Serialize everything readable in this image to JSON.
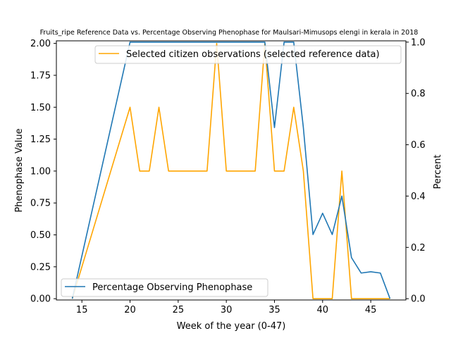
{
  "chart_data": {
    "type": "line",
    "title": "Fruits_ripe Reference Data vs. Percentage Observing Phenophase for Maulsari-Mimusops elengi in kerala in 2018",
    "xlabel": "Week of the year (0-47)",
    "ylabel_left": "Phenophase Value",
    "ylabel_right": "Percent",
    "xlim": [
      12.35,
      48.65
    ],
    "ylim_left": [
      -0.01,
      2.02
    ],
    "ylim_right": [
      -0.005,
      1.005
    ],
    "xticks": [
      "15",
      "20",
      "25",
      "30",
      "35",
      "40",
      "45"
    ],
    "yticks_left": [
      "0.00",
      "0.25",
      "0.50",
      "0.75",
      "1.00",
      "1.25",
      "1.50",
      "1.75",
      "2.00"
    ],
    "yticks_right": [
      "0.0",
      "0.2",
      "0.4",
      "0.6",
      "0.8",
      "1.0"
    ],
    "grid": false,
    "series": [
      {
        "name": "Selected citizen observations (selected reference data)",
        "axis": "left",
        "color": "#ffa500",
        "legend_position": "top-right",
        "x": [
          14,
          20,
          21,
          22,
          23,
          24,
          25,
          26,
          27,
          28,
          29,
          30,
          31,
          32,
          33,
          34,
          35,
          36,
          37,
          38,
          39,
          40,
          41,
          42,
          43,
          44,
          45,
          46,
          47
        ],
        "y": [
          0,
          1.5,
          1,
          1,
          1.5,
          1,
          1,
          1,
          1,
          1,
          2,
          1,
          1,
          1,
          1,
          2,
          1,
          1,
          1.5,
          1,
          0,
          0,
          0,
          1,
          0,
          0,
          0,
          0,
          0
        ]
      },
      {
        "name": "Percentage Observing Phenophase",
        "axis": "right",
        "color": "#1f77b4",
        "legend_position": "lower-left",
        "x": [
          14,
          20,
          21,
          22,
          23,
          24,
          25,
          26,
          27,
          28,
          29,
          30,
          31,
          32,
          33,
          34,
          35,
          36,
          37,
          38,
          39,
          40,
          41,
          42,
          43,
          44,
          45,
          46,
          47
        ],
        "y": [
          0,
          1,
          1,
          1,
          1,
          1,
          1,
          1,
          1,
          1,
          1,
          1,
          1,
          1,
          1,
          1,
          0.667,
          1,
          1,
          0.667,
          0.25,
          0.333,
          0.25,
          0.4,
          0.16,
          0.1,
          0.105,
          0.1,
          0
        ]
      }
    ]
  }
}
